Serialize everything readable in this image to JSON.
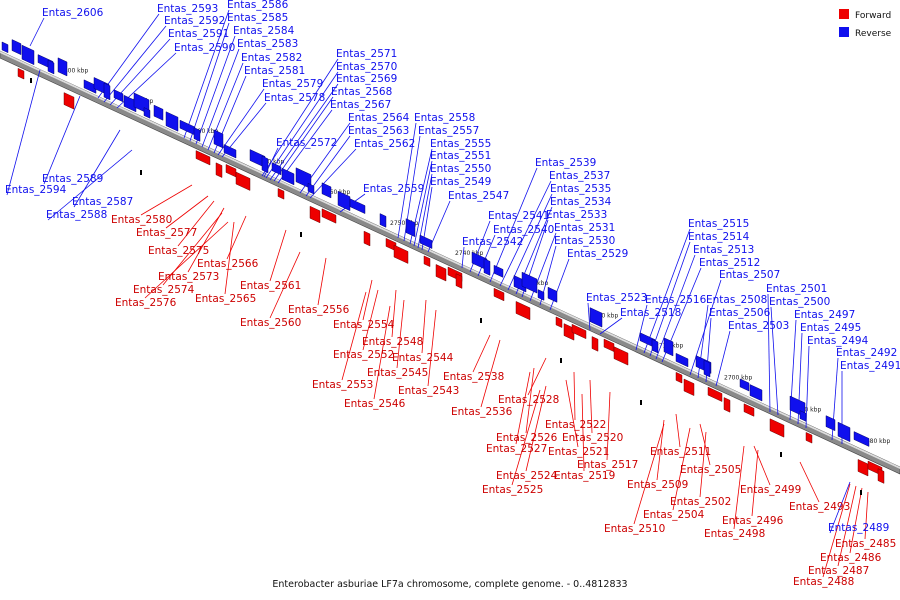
{
  "legend": {
    "forward_label": "Forward",
    "reverse_label": "Reverse",
    "forward_color": "#ee0000",
    "reverse_color": "#1010ee"
  },
  "caption": "Enterobacter asburiae LF7a chromosome, complete genome. - 0..4812833",
  "ticks": [
    "2800 kbp",
    "2790 kbp",
    "2780 kbp",
    "2770 kbp",
    "2760 kbp",
    "2750 kbp",
    "2740 kbp",
    "2730 kbp",
    "2720 kbp",
    "2710 kbp",
    "2700 kbp",
    "2690 kbp",
    "2680 kbp"
  ],
  "reverse_genes": [
    "Entas_2606",
    "Entas_2593",
    "Entas_2592",
    "Entas_2591",
    "Entas_2590",
    "Entas_2586",
    "Entas_2585",
    "Entas_2584",
    "Entas_2583",
    "Entas_2582",
    "Entas_2581",
    "Entas_2579",
    "Entas_2578",
    "Entas_2571",
    "Entas_2570",
    "Entas_2569",
    "Entas_2568",
    "Entas_2567",
    "Entas_2564",
    "Entas_2563",
    "Entas_2562",
    "Entas_2572",
    "Entas_2558",
    "Entas_2557",
    "Entas_2555",
    "Entas_2551",
    "Entas_2550",
    "Entas_2549",
    "Entas_2559",
    "Entas_2547",
    "Entas_2539",
    "Entas_2537",
    "Entas_2535",
    "Entas_2534",
    "Entas_2533",
    "Entas_2541",
    "Entas_2540",
    "Entas_2531",
    "Entas_2542",
    "Entas_2530",
    "Entas_2529",
    "Entas_2515",
    "Entas_2514",
    "Entas_2513",
    "Entas_2512",
    "Entas_2507",
    "Entas_2501",
    "Entas_2523",
    "Entas_2516",
    "Entas_2508",
    "Entas_2500",
    "Entas_2518",
    "Entas_2506",
    "Entas_2497",
    "Entas_2503",
    "Entas_2495",
    "Entas_2494",
    "Entas_2492",
    "Entas_2491",
    "Entas_2594",
    "Entas_2589",
    "Entas_2587",
    "Entas_2588",
    "Entas_2489"
  ],
  "forward_genes": [
    "Entas_2580",
    "Entas_2577",
    "Entas_2575",
    "Entas_2566",
    "Entas_2573",
    "Entas_2574",
    "Entas_2565",
    "Entas_2561",
    "Entas_2576",
    "Entas_2556",
    "Entas_2560",
    "Entas_2554",
    "Entas_2548",
    "Entas_2552",
    "Entas_2544",
    "Entas_2545",
    "Entas_2553",
    "Entas_2543",
    "Entas_2546",
    "Entas_2538",
    "Entas_2536",
    "Entas_2528",
    "Entas_2522",
    "Entas_2526",
    "Entas_2520",
    "Entas_2527",
    "Entas_2521",
    "Entas_2517",
    "Entas_2524",
    "Entas_2519",
    "Entas_2525",
    "Entas_2511",
    "Entas_2505",
    "Entas_2509",
    "Entas_2499",
    "Entas_2502",
    "Entas_2504",
    "Entas_2493",
    "Entas_2496",
    "Entas_2510",
    "Entas_2498",
    "Entas_2485",
    "Entas_2486",
    "Entas_2487",
    "Entas_2488"
  ]
}
